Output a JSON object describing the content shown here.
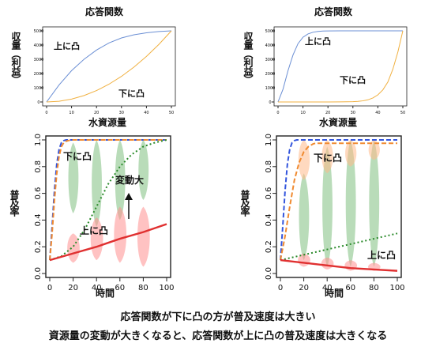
{
  "chart_data": [
    {
      "type": "line",
      "title": "応答関数",
      "xlabel": "水資源量",
      "ylabel": "収量（利益）",
      "xlim": [
        0,
        50
      ],
      "ylim": [
        0,
        5000
      ],
      "xticks": [
        "0",
        "10",
        "20",
        "30",
        "40",
        "50"
      ],
      "yticks": [
        "0",
        "1000",
        "2000",
        "3000",
        "4000",
        "5000"
      ],
      "series": [
        {
          "name": "上に凸",
          "color": "#6b8fd4",
          "x": [
            0,
            5,
            10,
            15,
            20,
            25,
            30,
            35,
            40,
            45,
            50
          ],
          "y": [
            0,
            1200,
            2200,
            3000,
            3650,
            4150,
            4500,
            4720,
            4860,
            4950,
            5000
          ]
        },
        {
          "name": "下に凸",
          "color": "#f0b040",
          "x": [
            0,
            5,
            10,
            15,
            20,
            25,
            30,
            35,
            40,
            45,
            50
          ],
          "y": [
            0,
            50,
            200,
            450,
            800,
            1250,
            1800,
            2450,
            3200,
            4050,
            5000
          ]
        }
      ],
      "annotations": [
        "上に凸",
        "下に凸"
      ]
    },
    {
      "type": "line",
      "title": "応答関数",
      "xlabel": "水資源量",
      "ylabel": "収量（利益）",
      "xlim": [
        0,
        50
      ],
      "ylim": [
        0,
        5000
      ],
      "xticks": [
        "0",
        "10",
        "20",
        "30",
        "40",
        "50"
      ],
      "yticks": [
        "0",
        "1000",
        "2000",
        "3000",
        "4000",
        "5000"
      ],
      "series": [
        {
          "name": "上に凸",
          "color": "#6b8fd4",
          "x": [
            0,
            2,
            4,
            6,
            8,
            10,
            12,
            14,
            16,
            18,
            20,
            25,
            30,
            35,
            40,
            45,
            50
          ],
          "y": [
            0,
            900,
            2200,
            3300,
            4100,
            4550,
            4780,
            4900,
            4960,
            4985,
            4995,
            5000,
            5000,
            5000,
            5000,
            5000,
            5000
          ]
        },
        {
          "name": "下に凸",
          "color": "#f0b040",
          "x": [
            0,
            5,
            10,
            15,
            20,
            25,
            30,
            32,
            34,
            36,
            38,
            40,
            42,
            44,
            46,
            48,
            50
          ],
          "y": [
            0,
            0,
            0,
            0,
            0,
            5,
            20,
            40,
            80,
            150,
            280,
            500,
            850,
            1400,
            2300,
            3500,
            5000
          ]
        }
      ],
      "annotations": [
        "上に凸",
        "下に凸"
      ]
    },
    {
      "type": "line",
      "title": "",
      "xlabel": "時間",
      "ylabel": "普及率",
      "xlim": [
        0,
        100
      ],
      "ylim": [
        0,
        1
      ],
      "xticks": [
        "0",
        "20",
        "40",
        "60",
        "80",
        "100"
      ],
      "yticks": [
        "0.0",
        "0.2",
        "0.4",
        "0.6",
        "0.8",
        "1.0"
      ],
      "series": [
        {
          "name": "blue-dashed",
          "color": "#3355dd",
          "style": "dashed",
          "x": [
            0,
            2,
            4,
            6,
            8,
            10,
            12,
            14,
            16,
            20,
            30,
            100
          ],
          "y": [
            0.1,
            0.35,
            0.62,
            0.82,
            0.93,
            0.98,
            0.995,
            1,
            1,
            1,
            1,
            1
          ]
        },
        {
          "name": "orange-dashed",
          "color": "#f08a30",
          "style": "dashed",
          "x": [
            0,
            2,
            4,
            6,
            8,
            10,
            12,
            14,
            16,
            18,
            20,
            30,
            100
          ],
          "y": [
            0.1,
            0.3,
            0.55,
            0.75,
            0.88,
            0.95,
            0.98,
            0.99,
            0.995,
            1,
            1,
            1,
            1
          ]
        },
        {
          "name": "green-dotted",
          "color": "#2a8a2a",
          "style": "dotted",
          "x": [
            0,
            10,
            20,
            30,
            40,
            50,
            60,
            70,
            80,
            90,
            100
          ],
          "y": [
            0.1,
            0.13,
            0.2,
            0.33,
            0.5,
            0.67,
            0.8,
            0.89,
            0.95,
            0.98,
            1
          ]
        },
        {
          "name": "red-solid",
          "color": "#e03030",
          "style": "solid",
          "x": [
            0,
            20,
            40,
            60,
            80,
            100
          ],
          "y": [
            0.1,
            0.15,
            0.2,
            0.26,
            0.31,
            0.37
          ]
        }
      ],
      "distributions": [
        {
          "x": 20,
          "green": [
            0.45,
            0.98
          ],
          "red": [
            0.08,
            0.3
          ]
        },
        {
          "x": 40,
          "green": [
            0.35,
            1.0
          ],
          "red": [
            0.1,
            0.42
          ]
        },
        {
          "x": 60,
          "green": [
            0.4,
            1.0
          ],
          "red": [
            0.08,
            0.5
          ]
        },
        {
          "x": 80,
          "green": [
            0.55,
            1.0
          ],
          "red": [
            0.05,
            0.5
          ]
        }
      ],
      "annotations": [
        "下に凸",
        "変動大",
        "上に凸"
      ]
    },
    {
      "type": "line",
      "title": "",
      "xlabel": "時間",
      "ylabel": "普及率",
      "xlim": [
        0,
        100
      ],
      "ylim": [
        0,
        1
      ],
      "xticks": [
        "0",
        "20",
        "40",
        "60",
        "80",
        "100"
      ],
      "yticks": [
        "0.0",
        "0.2",
        "0.4",
        "0.6",
        "0.8",
        "1.0"
      ],
      "series": [
        {
          "name": "blue-dashed",
          "color": "#3355dd",
          "style": "dashed",
          "x": [
            0,
            2,
            4,
            6,
            8,
            10,
            12,
            14,
            16,
            20,
            30,
            100
          ],
          "y": [
            0.1,
            0.35,
            0.62,
            0.82,
            0.93,
            0.98,
            0.995,
            1,
            1,
            1,
            1,
            1
          ]
        },
        {
          "name": "orange-dashed",
          "color": "#f08a30",
          "style": "dashed",
          "x": [
            0,
            4,
            8,
            12,
            16,
            20,
            24,
            28,
            30,
            40,
            100
          ],
          "y": [
            0.1,
            0.28,
            0.5,
            0.7,
            0.83,
            0.91,
            0.95,
            0.97,
            0.975,
            0.975,
            0.975
          ]
        },
        {
          "name": "green-dotted",
          "color": "#2a8a2a",
          "style": "dotted",
          "x": [
            0,
            20,
            40,
            60,
            80,
            100
          ],
          "y": [
            0.1,
            0.14,
            0.18,
            0.22,
            0.26,
            0.3
          ]
        },
        {
          "name": "red-solid",
          "color": "#e03030",
          "style": "solid",
          "x": [
            0,
            20,
            40,
            60,
            80,
            100
          ],
          "y": [
            0.1,
            0.08,
            0.06,
            0.04,
            0.03,
            0.02
          ]
        }
      ],
      "distributions": [
        {
          "x": 20,
          "green": [
            0.1,
            0.75
          ],
          "red": [
            0.05,
            0.15
          ],
          "orange": [
            0.7,
            1.0
          ]
        },
        {
          "x": 40,
          "green": [
            0.05,
            0.95
          ],
          "red": [
            0.03,
            0.12
          ],
          "orange": [
            0.75,
            1.0
          ]
        },
        {
          "x": 60,
          "green": [
            0.05,
            1.0
          ],
          "red": [
            0.02,
            0.1
          ],
          "orange": [
            0.8,
            1.0
          ]
        },
        {
          "x": 80,
          "green": [
            0.05,
            1.0
          ],
          "red": [
            0.02,
            0.08
          ],
          "orange": [
            0.85,
            1.0
          ]
        }
      ],
      "annotations": [
        "下に凸",
        "上に凸"
      ]
    }
  ],
  "captions": {
    "line1": "応答関数が下に凸の方が普及速度は大きい",
    "line2": "資源量の変動が大きくなると、応答関数が上に凸の普及速度は大きくなる"
  }
}
